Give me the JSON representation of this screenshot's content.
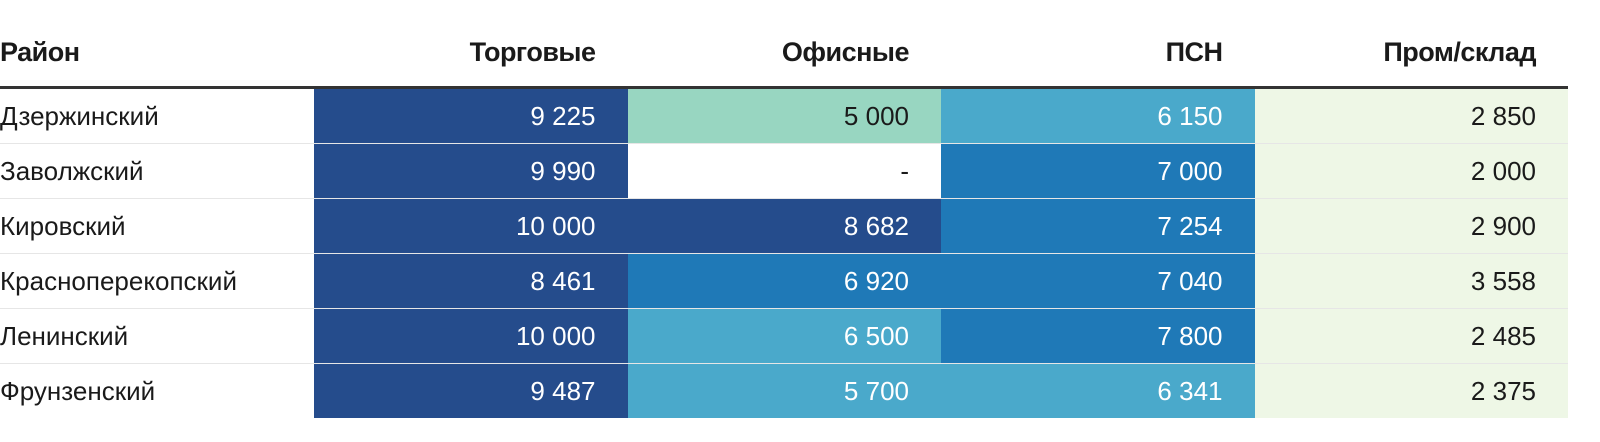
{
  "chart_data": {
    "type": "table",
    "columns": [
      "Район",
      "Торговые",
      "Офисные",
      "ПСН",
      "Пром/склад"
    ],
    "rows": [
      {
        "name": "Дзержинский",
        "values": [
          "9 225",
          "5 000",
          "6 150",
          "2 850"
        ],
        "levels": [
          4,
          1,
          2,
          0
        ]
      },
      {
        "name": "Заволжский",
        "values": [
          "9 990",
          "-",
          "7 000",
          "2 000"
        ],
        "levels": [
          4,
          null,
          3,
          0
        ]
      },
      {
        "name": "Кировский",
        "values": [
          "10 000",
          "8 682",
          "7 254",
          "2 900"
        ],
        "levels": [
          4,
          4,
          3,
          0
        ]
      },
      {
        "name": "Красноперекопский",
        "values": [
          "8 461",
          "6 920",
          "7 040",
          "3 558"
        ],
        "levels": [
          4,
          3,
          3,
          0
        ]
      },
      {
        "name": "Ленинский",
        "values": [
          "10 000",
          "6 500",
          "7 800",
          "2 485"
        ],
        "levels": [
          4,
          2,
          3,
          0
        ]
      },
      {
        "name": "Фрунзенский",
        "values": [
          "9 487",
          "5 700",
          "6 341",
          "2 375"
        ],
        "levels": [
          4,
          2,
          2,
          0
        ]
      }
    ],
    "color_scale": [
      "#eef7e6",
      "#98d6c1",
      "#4aa9cb",
      "#1f79b7",
      "#254c8c"
    ],
    "empty_color": "#ffffff",
    "dark_text_color": "#1a1a1a",
    "light_text_color": "#ffffff"
  }
}
